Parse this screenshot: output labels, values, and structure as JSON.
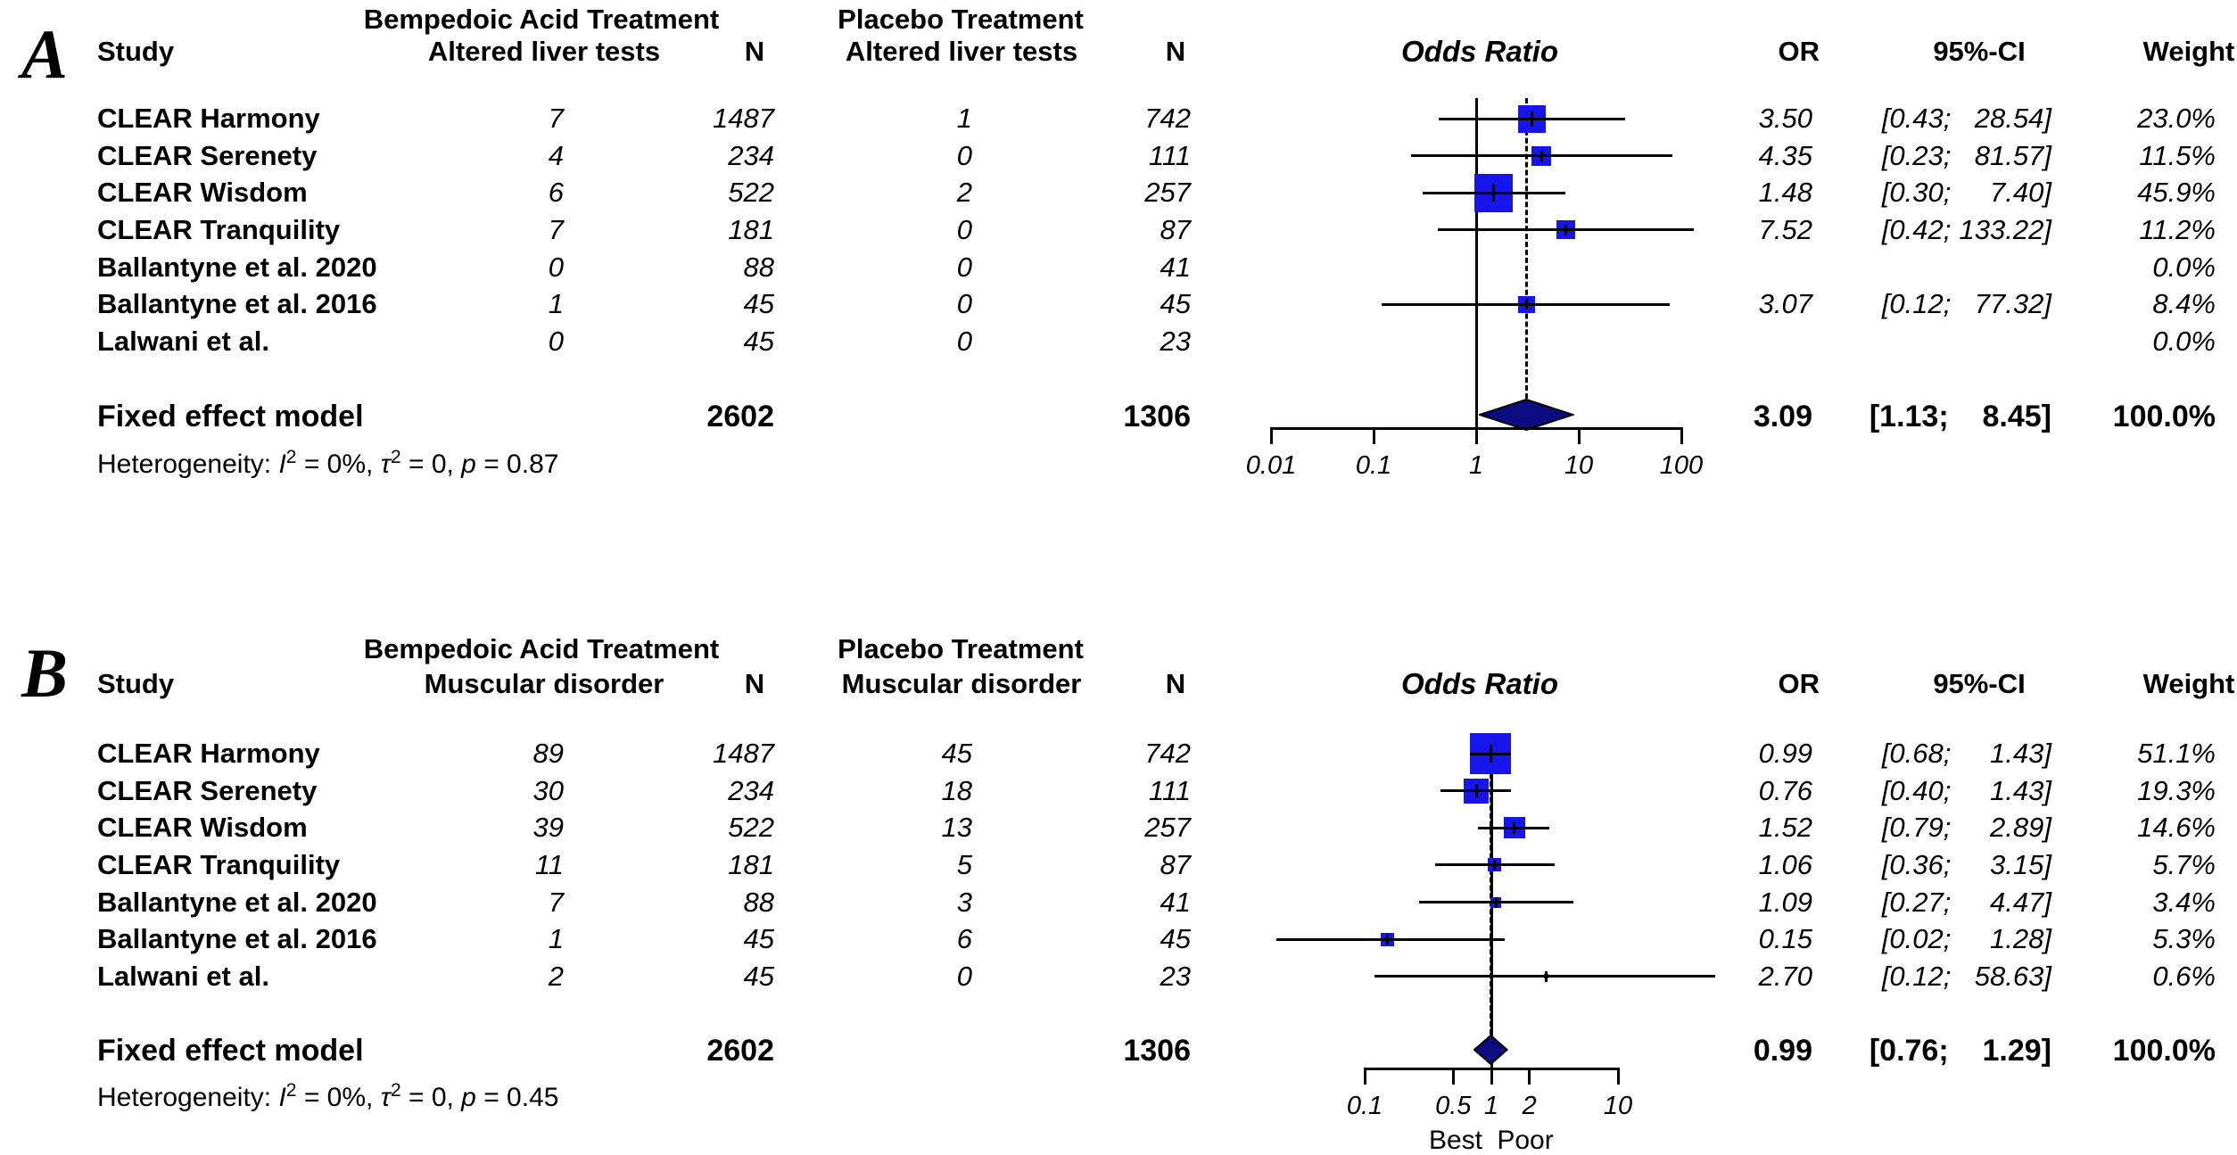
{
  "colors": {
    "background": "#ffffff",
    "text": "#000000",
    "square_blue": "#1616ec",
    "diamond_navy": "#0c0c80",
    "line_black": "#000000"
  },
  "figure": {
    "panel_a_label": "A",
    "panel_b_label": "B"
  },
  "chart_data": [
    {
      "type": "scatter",
      "variant": "forest-plot",
      "panel_label": "A",
      "header": {
        "group1": "Bempedoic Acid Treatment",
        "group2": "Placebo Treatment",
        "study": "Study",
        "outcome": "Altered liver tests",
        "n": "N",
        "effect": "Odds Ratio",
        "or": "OR",
        "ci": "95%-CI",
        "weight": "Weight"
      },
      "x_axis": {
        "scale": "log",
        "tick_values": [
          0.01,
          0.1,
          1,
          10,
          100
        ],
        "tick_labels": [
          "0.01",
          "0.1",
          "1",
          "10",
          "100"
        ],
        "below_labels": []
      },
      "reference_line": 1,
      "studies": [
        {
          "study": "CLEAR Harmony",
          "treat_events": 7,
          "treat_n": 1487,
          "placebo_events": 1,
          "placebo_n": 742,
          "or": 3.5,
          "ci_low": 0.43,
          "ci_high": 28.54,
          "weight_pct": 23.0
        },
        {
          "study": "CLEAR Serenety",
          "treat_events": 4,
          "treat_n": 234,
          "placebo_events": 0,
          "placebo_n": 111,
          "or": 4.35,
          "ci_low": 0.23,
          "ci_high": 81.57,
          "weight_pct": 11.5
        },
        {
          "study": "CLEAR Wisdom",
          "treat_events": 6,
          "treat_n": 522,
          "placebo_events": 2,
          "placebo_n": 257,
          "or": 1.48,
          "ci_low": 0.3,
          "ci_high": 7.4,
          "weight_pct": 45.9
        },
        {
          "study": "CLEAR Tranquility",
          "treat_events": 7,
          "treat_n": 181,
          "placebo_events": 0,
          "placebo_n": 87,
          "or": 7.52,
          "ci_low": 0.42,
          "ci_high": 133.22,
          "weight_pct": 11.2
        },
        {
          "study": "Ballantyne et al. 2020",
          "treat_events": 0,
          "treat_n": 88,
          "placebo_events": 0,
          "placebo_n": 41,
          "or": null,
          "ci_low": null,
          "ci_high": null,
          "weight_pct": 0.0
        },
        {
          "study": "Ballantyne et al. 2016",
          "treat_events": 1,
          "treat_n": 45,
          "placebo_events": 0,
          "placebo_n": 45,
          "or": 3.07,
          "ci_low": 0.12,
          "ci_high": 77.32,
          "weight_pct": 8.4
        },
        {
          "study": "Lalwani et al.",
          "treat_events": 0,
          "treat_n": 45,
          "placebo_events": 0,
          "placebo_n": 23,
          "or": null,
          "ci_low": null,
          "ci_high": null,
          "weight_pct": 0.0
        }
      ],
      "summary": {
        "label": "Fixed effect model",
        "treat_n": 2602,
        "placebo_n": 1306,
        "or": 3.09,
        "ci_low": 1.13,
        "ci_high": 8.45,
        "weight_pct": 100.0
      },
      "heterogeneity": {
        "prefix": "Heterogeneity: ",
        "terms": [
          {
            "sym": "I",
            "sup": "2",
            "tail": " = 0%, "
          },
          {
            "sym": "τ",
            "sup": "2",
            "tail": " = 0, "
          },
          {
            "sym": "p",
            "sup": "",
            "tail": " = 0.87"
          }
        ]
      }
    },
    {
      "type": "scatter",
      "variant": "forest-plot",
      "panel_label": "B",
      "header": {
        "group1": "Bempedoic Acid Treatment",
        "group2": "Placebo Treatment",
        "study": "Study",
        "outcome": "Muscular disorder",
        "n": "N",
        "effect": "Odds Ratio",
        "or": "OR",
        "ci": "95%-CI",
        "weight": "Weight"
      },
      "x_axis": {
        "scale": "log",
        "tick_values": [
          0.1,
          0.5,
          1,
          2,
          10
        ],
        "tick_labels": [
          "0.1",
          "0.5",
          "1",
          "2",
          "10"
        ],
        "below_labels": [
          "Best",
          "Poor"
        ]
      },
      "reference_line": 1,
      "studies": [
        {
          "study": "CLEAR Harmony",
          "treat_events": 89,
          "treat_n": 1487,
          "placebo_events": 45,
          "placebo_n": 742,
          "or": 0.99,
          "ci_low": 0.68,
          "ci_high": 1.43,
          "weight_pct": 51.1
        },
        {
          "study": "CLEAR Serenety",
          "treat_events": 30,
          "treat_n": 234,
          "placebo_events": 18,
          "placebo_n": 111,
          "or": 0.76,
          "ci_low": 0.4,
          "ci_high": 1.43,
          "weight_pct": 19.3
        },
        {
          "study": "CLEAR Wisdom",
          "treat_events": 39,
          "treat_n": 522,
          "placebo_events": 13,
          "placebo_n": 257,
          "or": 1.52,
          "ci_low": 0.79,
          "ci_high": 2.89,
          "weight_pct": 14.6
        },
        {
          "study": "CLEAR Tranquility",
          "treat_events": 11,
          "treat_n": 181,
          "placebo_events": 5,
          "placebo_n": 87,
          "or": 1.06,
          "ci_low": 0.36,
          "ci_high": 3.15,
          "weight_pct": 5.7
        },
        {
          "study": "Ballantyne et al. 2020",
          "treat_events": 7,
          "treat_n": 88,
          "placebo_events": 3,
          "placebo_n": 41,
          "or": 1.09,
          "ci_low": 0.27,
          "ci_high": 4.47,
          "weight_pct": 3.4
        },
        {
          "study": "Ballantyne et al. 2016",
          "treat_events": 1,
          "treat_n": 45,
          "placebo_events": 6,
          "placebo_n": 45,
          "or": 0.15,
          "ci_low": 0.02,
          "ci_high": 1.28,
          "weight_pct": 5.3
        },
        {
          "study": "Lalwani et al.",
          "treat_events": 2,
          "treat_n": 45,
          "placebo_events": 0,
          "placebo_n": 23,
          "or": 2.7,
          "ci_low": 0.12,
          "ci_high": 58.63,
          "weight_pct": 0.6
        }
      ],
      "summary": {
        "label": "Fixed effect model",
        "treat_n": 2602,
        "placebo_n": 1306,
        "or": 0.99,
        "ci_low": 0.76,
        "ci_high": 1.29,
        "weight_pct": 100.0
      },
      "heterogeneity": {
        "prefix": "Heterogeneity: ",
        "terms": [
          {
            "sym": "I",
            "sup": "2",
            "tail": " = 0%, "
          },
          {
            "sym": "τ",
            "sup": "2",
            "tail": " = 0, "
          },
          {
            "sym": "p",
            "sup": "",
            "tail": " = 0.45"
          }
        ]
      }
    }
  ]
}
